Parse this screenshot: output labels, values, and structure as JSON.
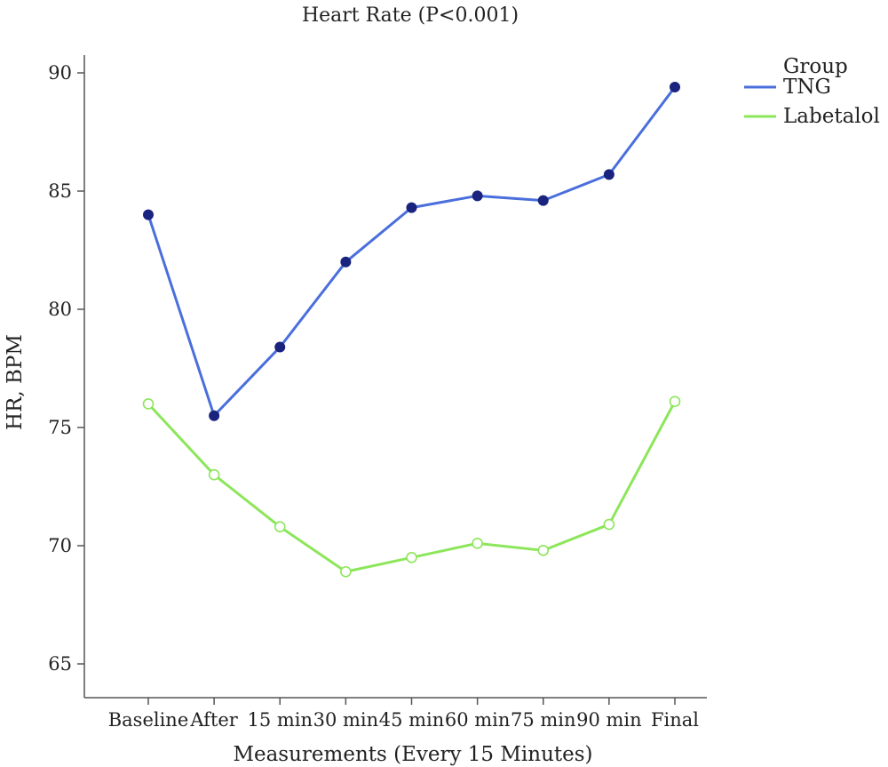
{
  "chart_data": {
    "type": "line",
    "title": "Heart Rate (P<0.001)",
    "xlabel": "Measurements (Every 15 Minutes)",
    "ylabel": "HR, BPM",
    "categories": [
      "Baseline",
      "After",
      "15 min",
      "30 min",
      "45 min",
      "60 min",
      "75 min",
      "90 min",
      "Final"
    ],
    "ylim": [
      64,
      91.5
    ],
    "yticks": [
      65,
      70,
      75,
      80,
      85,
      90
    ],
    "grid": false,
    "legend": {
      "title": "Group",
      "position": "top-right"
    },
    "series": [
      {
        "name": "TNG",
        "color": "#4a6fdc",
        "marker_color": "#1a237e",
        "marker": "filled-circle",
        "values": [
          84.0,
          75.5,
          78.4,
          82.0,
          84.3,
          84.8,
          84.6,
          85.7,
          89.4
        ]
      },
      {
        "name": "Labetalol",
        "color": "#8ce65a",
        "marker_color": "#8ce65a",
        "marker": "open-circle",
        "values": [
          76.0,
          73.0,
          70.8,
          68.9,
          69.5,
          70.1,
          69.8,
          70.9,
          76.1
        ]
      }
    ]
  }
}
